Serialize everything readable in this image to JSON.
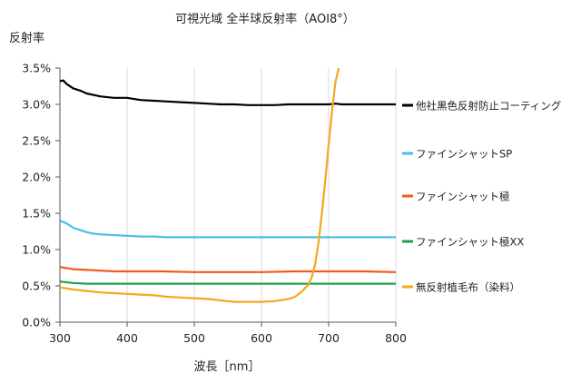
{
  "chart_data": {
    "type": "line",
    "title": "可視光域 全半球反射率（AOI8°）",
    "xlabel": "波長［nm］",
    "ylabel": "反射率",
    "xlim": [
      300,
      800
    ],
    "ylim": [
      0.0,
      3.5
    ],
    "xticks": [
      300,
      400,
      500,
      600,
      700,
      800
    ],
    "xtick_labels": [
      "300",
      "400",
      "500",
      "600",
      "700",
      "800"
    ],
    "yticks": [
      0.0,
      0.5,
      1.0,
      1.5,
      2.0,
      2.5,
      3.0,
      3.5
    ],
    "ytick_labels": [
      "0.0%",
      "0.5%",
      "1.0%",
      "1.5%",
      "2.0%",
      "2.5%",
      "3.0%",
      "3.5%"
    ],
    "grid": "vertical",
    "legend_position": "right",
    "series": [
      {
        "name": "他社黒色反射防止コーティング",
        "color": "#000000",
        "x": [
          300,
          305,
          310,
          320,
          330,
          340,
          360,
          380,
          400,
          420,
          440,
          460,
          480,
          500,
          520,
          540,
          560,
          580,
          600,
          620,
          640,
          660,
          680,
          700,
          710,
          720,
          740,
          760,
          780,
          800
        ],
        "y": [
          3.32,
          3.33,
          3.28,
          3.22,
          3.19,
          3.15,
          3.11,
          3.09,
          3.09,
          3.06,
          3.05,
          3.04,
          3.03,
          3.02,
          3.01,
          3.0,
          3.0,
          2.99,
          2.99,
          2.99,
          3.0,
          3.0,
          3.0,
          3.0,
          3.01,
          3.0,
          3.0,
          3.0,
          3.0,
          3.0
        ]
      },
      {
        "name": "ファインシャットSP",
        "color": "#4DBDEB",
        "x": [
          300,
          310,
          320,
          330,
          340,
          350,
          360,
          380,
          400,
          420,
          440,
          460,
          480,
          500,
          550,
          600,
          650,
          700,
          750,
          800
        ],
        "y": [
          1.4,
          1.36,
          1.3,
          1.27,
          1.24,
          1.22,
          1.21,
          1.2,
          1.19,
          1.18,
          1.18,
          1.17,
          1.17,
          1.17,
          1.17,
          1.17,
          1.17,
          1.17,
          1.17,
          1.17
        ]
      },
      {
        "name": "ファインシャット極",
        "color": "#F05A1E",
        "x": [
          300,
          320,
          340,
          360,
          380,
          400,
          450,
          500,
          550,
          600,
          650,
          700,
          750,
          800
        ],
        "y": [
          0.76,
          0.73,
          0.72,
          0.71,
          0.7,
          0.7,
          0.7,
          0.69,
          0.69,
          0.69,
          0.7,
          0.7,
          0.7,
          0.69
        ]
      },
      {
        "name": "ファインシャット極XX",
        "color": "#22A04B",
        "x": [
          300,
          320,
          340,
          360,
          380,
          400,
          450,
          500,
          550,
          600,
          650,
          700,
          750,
          800
        ],
        "y": [
          0.56,
          0.54,
          0.53,
          0.53,
          0.53,
          0.53,
          0.53,
          0.53,
          0.53,
          0.53,
          0.53,
          0.53,
          0.53,
          0.53
        ]
      },
      {
        "name": "無反射植毛布（染料）",
        "color": "#F4A81C",
        "x": [
          300,
          320,
          340,
          360,
          380,
          400,
          420,
          440,
          460,
          480,
          500,
          520,
          540,
          560,
          580,
          600,
          620,
          640,
          650,
          660,
          670,
          675,
          680,
          685,
          690,
          695,
          700,
          705,
          710,
          715
        ],
        "y": [
          0.48,
          0.45,
          0.43,
          0.41,
          0.4,
          0.39,
          0.38,
          0.37,
          0.35,
          0.34,
          0.33,
          0.32,
          0.3,
          0.28,
          0.28,
          0.28,
          0.29,
          0.32,
          0.35,
          0.42,
          0.52,
          0.62,
          0.8,
          1.1,
          1.5,
          1.95,
          2.45,
          2.9,
          3.3,
          3.5
        ]
      }
    ]
  }
}
